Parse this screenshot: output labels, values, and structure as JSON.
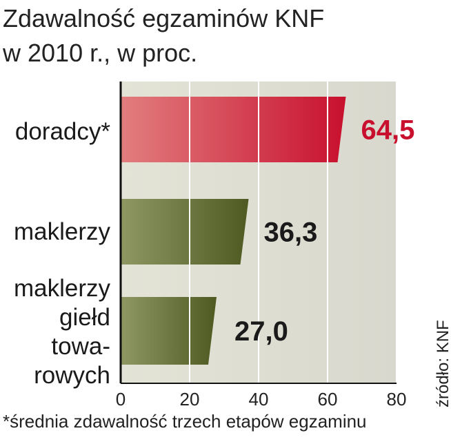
{
  "title": "Zdawalność egzaminów KNF\nw 2010 r., w proc.",
  "source": "źródło: KNF",
  "footnote": "*średnia zdawalność trzech etapów egzaminu",
  "colors": {
    "highlight": "#c8102e",
    "bar_green": "#5e6b2e",
    "plot_bg": "#deded4",
    "value_dark": "#1a1a1a"
  },
  "chart_data": {
    "type": "bar",
    "orientation": "horizontal",
    "title": "Zdawalność egzaminów KNF w 2010 r., w proc.",
    "xlim": [
      0,
      80
    ],
    "xticks": [
      0,
      20,
      40,
      60,
      80
    ],
    "xtick_labels": [
      "0",
      "20",
      "40",
      "60",
      "80"
    ],
    "grid": true,
    "categories": [
      [
        "doradcy*"
      ],
      [
        "maklerzy"
      ],
      [
        "maklerzy",
        "giełd",
        "towa-",
        "rowych"
      ]
    ],
    "values": [
      64.5,
      36.3,
      27.0
    ],
    "value_labels": [
      "64,5",
      "36,3",
      "27,0"
    ],
    "highlighted_index": 0
  }
}
